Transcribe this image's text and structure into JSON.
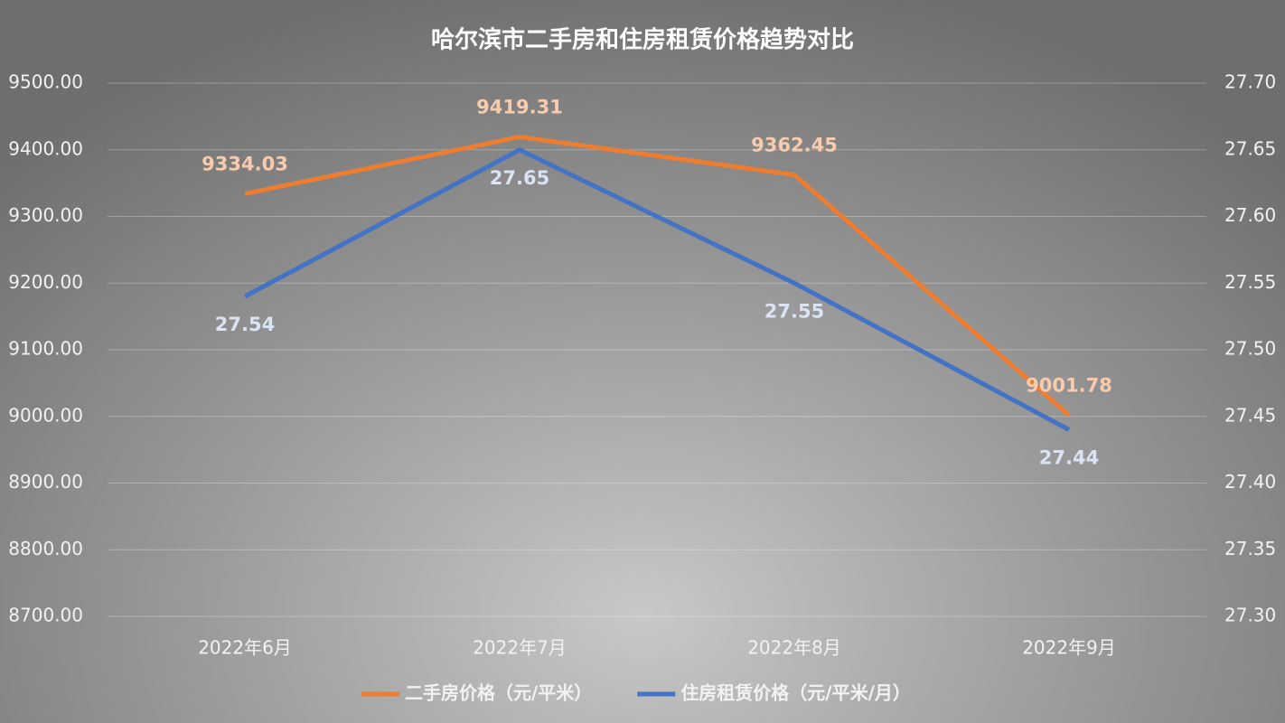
{
  "chart_data": {
    "type": "line",
    "title": "哈尔滨市二手房和住房租赁价格趋势对比",
    "categories": [
      "2022年6月",
      "2022年7月",
      "2022年8月",
      "2022年9月"
    ],
    "series": [
      {
        "name": "二手房价格（元/平米）",
        "color": "#ed7d31",
        "label_color": "#f8cbad",
        "values": [
          9334.03,
          9419.31,
          9362.45,
          9001.78
        ]
      },
      {
        "name": "住房租赁价格（元/平米/月）",
        "color": "#4472c4",
        "label_color": "#dae3f3",
        "axis": "y2",
        "values": [
          27.54,
          27.65,
          27.55,
          27.44
        ]
      }
    ],
    "ylim": [
      8700,
      9500
    ],
    "yticks": [
      {
        "value": 8700,
        "label": "8700.00"
      },
      {
        "value": 8800,
        "label": "8800.00"
      },
      {
        "value": 8900,
        "label": "8900.00"
      },
      {
        "value": 9000,
        "label": "9000.00"
      },
      {
        "value": 9100,
        "label": "9100.00"
      },
      {
        "value": 9200,
        "label": "9200.00"
      },
      {
        "value": 9300,
        "label": "9300.00"
      },
      {
        "value": 9400,
        "label": "9400.00"
      },
      {
        "value": 9500,
        "label": "9500.00"
      }
    ],
    "y2lim": [
      27.3,
      27.7
    ],
    "y2ticks": [
      {
        "value": 27.3,
        "label": "27.30"
      },
      27.35,
      {
        "value": 27.4,
        "label": "27.40"
      },
      27.45,
      {
        "value": 27.5,
        "label": "27.50"
      },
      27.55,
      {
        "value": 27.6,
        "label": "27.60"
      },
      27.65,
      {
        "value": 27.7,
        "label": "27.70"
      }
    ],
    "grid": true,
    "legend": "bottom"
  }
}
